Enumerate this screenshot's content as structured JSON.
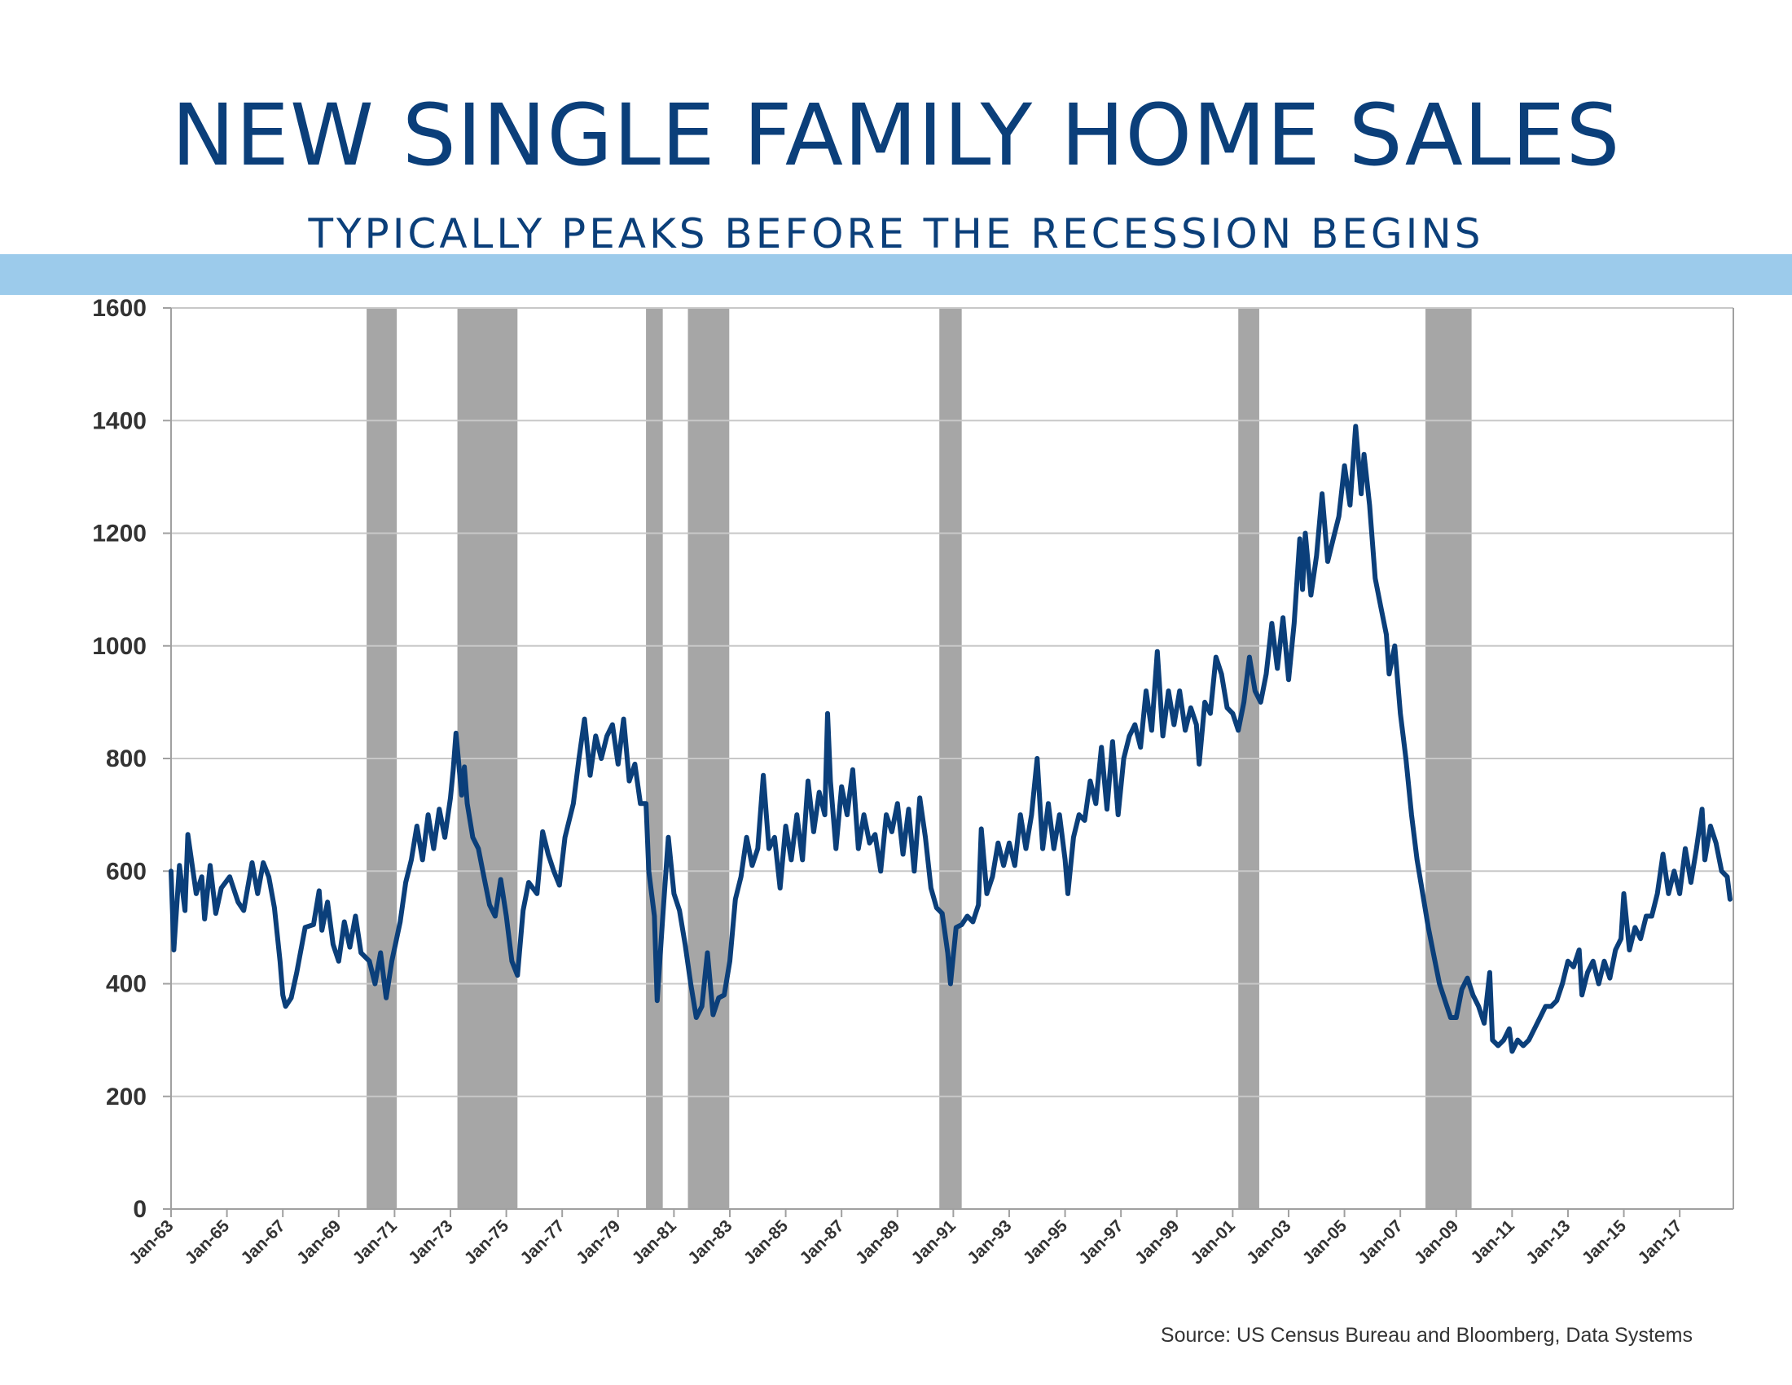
{
  "header": {
    "title": "NEW SINGLE FAMILY HOME SALES",
    "subtitle": "TYPICALLY PEAKS BEFORE THE RECESSION BEGINS"
  },
  "source": "Source:  US Census Bureau and Bloomberg, Data Systems",
  "colors": {
    "line": "#0b3f7a",
    "recession": "#a6a6a6",
    "band": "#9ccbeb",
    "grid": "#c8c8c8"
  },
  "chart_data": {
    "type": "line",
    "title": "NEW SINGLE FAMILY HOME SALES",
    "subtitle": "TYPICALLY PEAKS BEFORE THE RECESSION BEGINS",
    "xlabel": "",
    "ylabel": "",
    "ylim": [
      0,
      1600
    ],
    "xlim": [
      "Jan-63",
      "Dec-18"
    ],
    "grid": true,
    "yticks": [
      "0",
      "200",
      "400",
      "600",
      "800",
      "1000",
      "1200",
      "1400",
      "1600"
    ],
    "xticks": [
      "Jan-63",
      "Jan-65",
      "Jan-67",
      "Jan-69",
      "Jan-71",
      "Jan-73",
      "Jan-75",
      "Jan-77",
      "Jan-79",
      "Jan-81",
      "Jan-83",
      "Jan-85",
      "Jan-87",
      "Jan-89",
      "Jan-91",
      "Jan-93",
      "Jan-95",
      "Jan-97",
      "Jan-99",
      "Jan-01",
      "Jan-03",
      "Jan-05",
      "Jan-07",
      "Jan-09",
      "Jan-11",
      "Jan-13",
      "Jan-15",
      "Jan-17"
    ],
    "recessions": [
      {
        "start": 1970.0,
        "end": 1971.08
      },
      {
        "start": 1973.25,
        "end": 1975.4
      },
      {
        "start": 1980.0,
        "end": 1980.6
      },
      {
        "start": 1981.5,
        "end": 1982.98
      },
      {
        "start": 1990.5,
        "end": 1991.3
      },
      {
        "start": 2001.2,
        "end": 2001.95
      },
      {
        "start": 2007.9,
        "end": 2009.55
      }
    ],
    "series": [
      {
        "values": [
          [
            1963.0,
            600
          ],
          [
            1963.1,
            460
          ],
          [
            1963.3,
            610
          ],
          [
            1963.5,
            530
          ],
          [
            1963.6,
            665
          ],
          [
            1963.9,
            560
          ],
          [
            1964.1,
            590
          ],
          [
            1964.2,
            515
          ],
          [
            1964.4,
            610
          ],
          [
            1964.6,
            525
          ],
          [
            1964.8,
            570
          ],
          [
            1965.1,
            590
          ],
          [
            1965.4,
            545
          ],
          [
            1965.6,
            530
          ],
          [
            1965.9,
            615
          ],
          [
            1966.1,
            560
          ],
          [
            1966.3,
            615
          ],
          [
            1966.5,
            590
          ],
          [
            1966.7,
            535
          ],
          [
            1966.9,
            440
          ],
          [
            1967.0,
            380
          ],
          [
            1967.1,
            360
          ],
          [
            1967.3,
            375
          ],
          [
            1967.5,
            420
          ],
          [
            1967.8,
            500
          ],
          [
            1968.1,
            505
          ],
          [
            1968.3,
            565
          ],
          [
            1968.4,
            495
          ],
          [
            1968.6,
            545
          ],
          [
            1968.8,
            470
          ],
          [
            1969.0,
            440
          ],
          [
            1969.2,
            510
          ],
          [
            1969.4,
            465
          ],
          [
            1969.6,
            520
          ],
          [
            1969.8,
            455
          ],
          [
            1970.1,
            440
          ],
          [
            1970.3,
            400
          ],
          [
            1970.5,
            455
          ],
          [
            1970.7,
            375
          ],
          [
            1970.9,
            440
          ],
          [
            1971.2,
            510
          ],
          [
            1971.4,
            580
          ],
          [
            1971.6,
            620
          ],
          [
            1971.8,
            680
          ],
          [
            1972.0,
            620
          ],
          [
            1972.2,
            700
          ],
          [
            1972.4,
            640
          ],
          [
            1972.6,
            710
          ],
          [
            1972.8,
            660
          ],
          [
            1973.0,
            730
          ],
          [
            1973.1,
            780
          ],
          [
            1973.2,
            845
          ],
          [
            1973.4,
            735
          ],
          [
            1973.5,
            785
          ],
          [
            1973.6,
            720
          ],
          [
            1973.8,
            660
          ],
          [
            1974.0,
            640
          ],
          [
            1974.2,
            590
          ],
          [
            1974.4,
            540
          ],
          [
            1974.6,
            520
          ],
          [
            1974.8,
            585
          ],
          [
            1975.0,
            520
          ],
          [
            1975.2,
            440
          ],
          [
            1975.4,
            415
          ],
          [
            1975.6,
            530
          ],
          [
            1975.8,
            580
          ],
          [
            1976.1,
            560
          ],
          [
            1976.3,
            670
          ],
          [
            1976.5,
            630
          ],
          [
            1976.7,
            600
          ],
          [
            1976.9,
            575
          ],
          [
            1977.1,
            660
          ],
          [
            1977.4,
            720
          ],
          [
            1977.6,
            800
          ],
          [
            1977.8,
            870
          ],
          [
            1978.0,
            770
          ],
          [
            1978.2,
            840
          ],
          [
            1978.4,
            800
          ],
          [
            1978.6,
            840
          ],
          [
            1978.8,
            860
          ],
          [
            1979.0,
            790
          ],
          [
            1979.2,
            870
          ],
          [
            1979.4,
            760
          ],
          [
            1979.6,
            790
          ],
          [
            1979.8,
            720
          ],
          [
            1980.0,
            720
          ],
          [
            1980.1,
            600
          ],
          [
            1980.3,
            520
          ],
          [
            1980.4,
            370
          ],
          [
            1980.6,
            520
          ],
          [
            1980.8,
            660
          ],
          [
            1981.0,
            560
          ],
          [
            1981.2,
            530
          ],
          [
            1981.4,
            470
          ],
          [
            1981.6,
            400
          ],
          [
            1981.8,
            340
          ],
          [
            1982.0,
            360
          ],
          [
            1982.2,
            455
          ],
          [
            1982.4,
            345
          ],
          [
            1982.6,
            375
          ],
          [
            1982.8,
            380
          ],
          [
            1983.0,
            440
          ],
          [
            1983.2,
            550
          ],
          [
            1983.4,
            590
          ],
          [
            1983.6,
            660
          ],
          [
            1983.8,
            610
          ],
          [
            1984.0,
            640
          ],
          [
            1984.2,
            770
          ],
          [
            1984.4,
            640
          ],
          [
            1984.6,
            660
          ],
          [
            1984.8,
            570
          ],
          [
            1985.0,
            680
          ],
          [
            1985.2,
            620
          ],
          [
            1985.4,
            700
          ],
          [
            1985.6,
            620
          ],
          [
            1985.8,
            760
          ],
          [
            1986.0,
            670
          ],
          [
            1986.2,
            740
          ],
          [
            1986.4,
            700
          ],
          [
            1986.5,
            880
          ],
          [
            1986.6,
            760
          ],
          [
            1986.8,
            640
          ],
          [
            1987.0,
            750
          ],
          [
            1987.2,
            700
          ],
          [
            1987.4,
            780
          ],
          [
            1987.6,
            640
          ],
          [
            1987.8,
            700
          ],
          [
            1988.0,
            650
          ],
          [
            1988.2,
            665
          ],
          [
            1988.4,
            600
          ],
          [
            1988.6,
            700
          ],
          [
            1988.8,
            670
          ],
          [
            1989.0,
            720
          ],
          [
            1989.2,
            630
          ],
          [
            1989.4,
            710
          ],
          [
            1989.6,
            600
          ],
          [
            1989.8,
            730
          ],
          [
            1990.0,
            660
          ],
          [
            1990.2,
            570
          ],
          [
            1990.4,
            535
          ],
          [
            1990.6,
            525
          ],
          [
            1990.8,
            455
          ],
          [
            1990.9,
            400
          ],
          [
            1991.1,
            500
          ],
          [
            1991.3,
            505
          ],
          [
            1991.5,
            520
          ],
          [
            1991.7,
            510
          ],
          [
            1991.9,
            540
          ],
          [
            1992.0,
            675
          ],
          [
            1992.2,
            560
          ],
          [
            1992.4,
            590
          ],
          [
            1992.6,
            650
          ],
          [
            1992.8,
            610
          ],
          [
            1993.0,
            650
          ],
          [
            1993.2,
            610
          ],
          [
            1993.4,
            700
          ],
          [
            1993.6,
            640
          ],
          [
            1993.8,
            700
          ],
          [
            1994.0,
            800
          ],
          [
            1994.2,
            640
          ],
          [
            1994.4,
            720
          ],
          [
            1994.6,
            640
          ],
          [
            1994.8,
            700
          ],
          [
            1995.0,
            620
          ],
          [
            1995.1,
            560
          ],
          [
            1995.3,
            660
          ],
          [
            1995.5,
            700
          ],
          [
            1995.7,
            690
          ],
          [
            1995.9,
            760
          ],
          [
            1996.1,
            720
          ],
          [
            1996.3,
            820
          ],
          [
            1996.5,
            710
          ],
          [
            1996.7,
            830
          ],
          [
            1996.9,
            700
          ],
          [
            1997.1,
            800
          ],
          [
            1997.3,
            840
          ],
          [
            1997.5,
            860
          ],
          [
            1997.7,
            820
          ],
          [
            1997.9,
            920
          ],
          [
            1998.1,
            850
          ],
          [
            1998.3,
            990
          ],
          [
            1998.5,
            840
          ],
          [
            1998.7,
            920
          ],
          [
            1998.9,
            860
          ],
          [
            1999.1,
            920
          ],
          [
            1999.3,
            850
          ],
          [
            1999.5,
            890
          ],
          [
            1999.7,
            860
          ],
          [
            1999.8,
            790
          ],
          [
            2000.0,
            900
          ],
          [
            2000.2,
            880
          ],
          [
            2000.4,
            980
          ],
          [
            2000.6,
            950
          ],
          [
            2000.8,
            890
          ],
          [
            2001.0,
            880
          ],
          [
            2001.2,
            850
          ],
          [
            2001.4,
            900
          ],
          [
            2001.6,
            980
          ],
          [
            2001.8,
            920
          ],
          [
            2002.0,
            900
          ],
          [
            2002.2,
            950
          ],
          [
            2002.4,
            1040
          ],
          [
            2002.6,
            960
          ],
          [
            2002.8,
            1050
          ],
          [
            2003.0,
            940
          ],
          [
            2003.2,
            1040
          ],
          [
            2003.4,
            1190
          ],
          [
            2003.5,
            1100
          ],
          [
            2003.6,
            1200
          ],
          [
            2003.8,
            1090
          ],
          [
            2004.0,
            1160
          ],
          [
            2004.2,
            1270
          ],
          [
            2004.4,
            1150
          ],
          [
            2004.6,
            1190
          ],
          [
            2004.8,
            1230
          ],
          [
            2005.0,
            1320
          ],
          [
            2005.2,
            1250
          ],
          [
            2005.4,
            1390
          ],
          [
            2005.6,
            1270
          ],
          [
            2005.7,
            1340
          ],
          [
            2005.9,
            1250
          ],
          [
            2006.1,
            1120
          ],
          [
            2006.3,
            1070
          ],
          [
            2006.5,
            1020
          ],
          [
            2006.6,
            950
          ],
          [
            2006.8,
            1000
          ],
          [
            2007.0,
            880
          ],
          [
            2007.2,
            800
          ],
          [
            2007.4,
            700
          ],
          [
            2007.6,
            620
          ],
          [
            2007.8,
            560
          ],
          [
            2008.0,
            500
          ],
          [
            2008.2,
            450
          ],
          [
            2008.4,
            400
          ],
          [
            2008.6,
            370
          ],
          [
            2008.8,
            340
          ],
          [
            2009.0,
            340
          ],
          [
            2009.2,
            390
          ],
          [
            2009.4,
            410
          ],
          [
            2009.6,
            380
          ],
          [
            2009.8,
            360
          ],
          [
            2010.0,
            330
          ],
          [
            2010.2,
            420
          ],
          [
            2010.3,
            300
          ],
          [
            2010.5,
            290
          ],
          [
            2010.7,
            300
          ],
          [
            2010.9,
            320
          ],
          [
            2011.0,
            280
          ],
          [
            2011.2,
            300
          ],
          [
            2011.4,
            290
          ],
          [
            2011.6,
            300
          ],
          [
            2011.8,
            320
          ],
          [
            2012.0,
            340
          ],
          [
            2012.2,
            360
          ],
          [
            2012.4,
            360
          ],
          [
            2012.6,
            370
          ],
          [
            2012.8,
            400
          ],
          [
            2013.0,
            440
          ],
          [
            2013.2,
            430
          ],
          [
            2013.4,
            460
          ],
          [
            2013.5,
            380
          ],
          [
            2013.7,
            420
          ],
          [
            2013.9,
            440
          ],
          [
            2014.1,
            400
          ],
          [
            2014.3,
            440
          ],
          [
            2014.5,
            410
          ],
          [
            2014.7,
            460
          ],
          [
            2014.9,
            480
          ],
          [
            2015.0,
            560
          ],
          [
            2015.2,
            460
          ],
          [
            2015.4,
            500
          ],
          [
            2015.6,
            480
          ],
          [
            2015.8,
            520
          ],
          [
            2016.0,
            520
          ],
          [
            2016.2,
            560
          ],
          [
            2016.4,
            630
          ],
          [
            2016.6,
            560
          ],
          [
            2016.8,
            600
          ],
          [
            2017.0,
            560
          ],
          [
            2017.2,
            640
          ],
          [
            2017.4,
            580
          ],
          [
            2017.6,
            640
          ],
          [
            2017.8,
            710
          ],
          [
            2017.9,
            620
          ],
          [
            2018.1,
            680
          ],
          [
            2018.3,
            650
          ],
          [
            2018.5,
            600
          ],
          [
            2018.7,
            590
          ],
          [
            2018.8,
            550
          ]
        ]
      }
    ]
  }
}
